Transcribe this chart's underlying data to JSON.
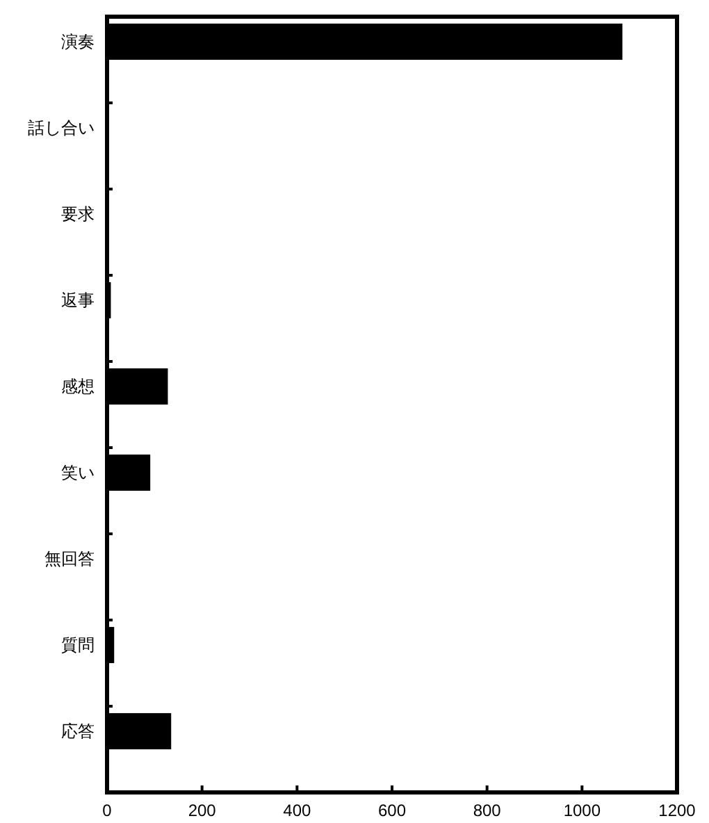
{
  "chart_data": {
    "type": "bar",
    "orientation": "horizontal",
    "categories": [
      "演奏",
      "話し合い",
      "要求",
      "返事",
      "感想",
      "笑い",
      "無回答",
      "質問",
      "応答"
    ],
    "values": [
      1085,
      0,
      0,
      8,
      128,
      91,
      0,
      15,
      135
    ],
    "color": "#000000",
    "xlim": [
      0,
      1200
    ],
    "xticks": [
      0,
      200,
      400,
      600,
      800,
      1000,
      1200
    ]
  }
}
